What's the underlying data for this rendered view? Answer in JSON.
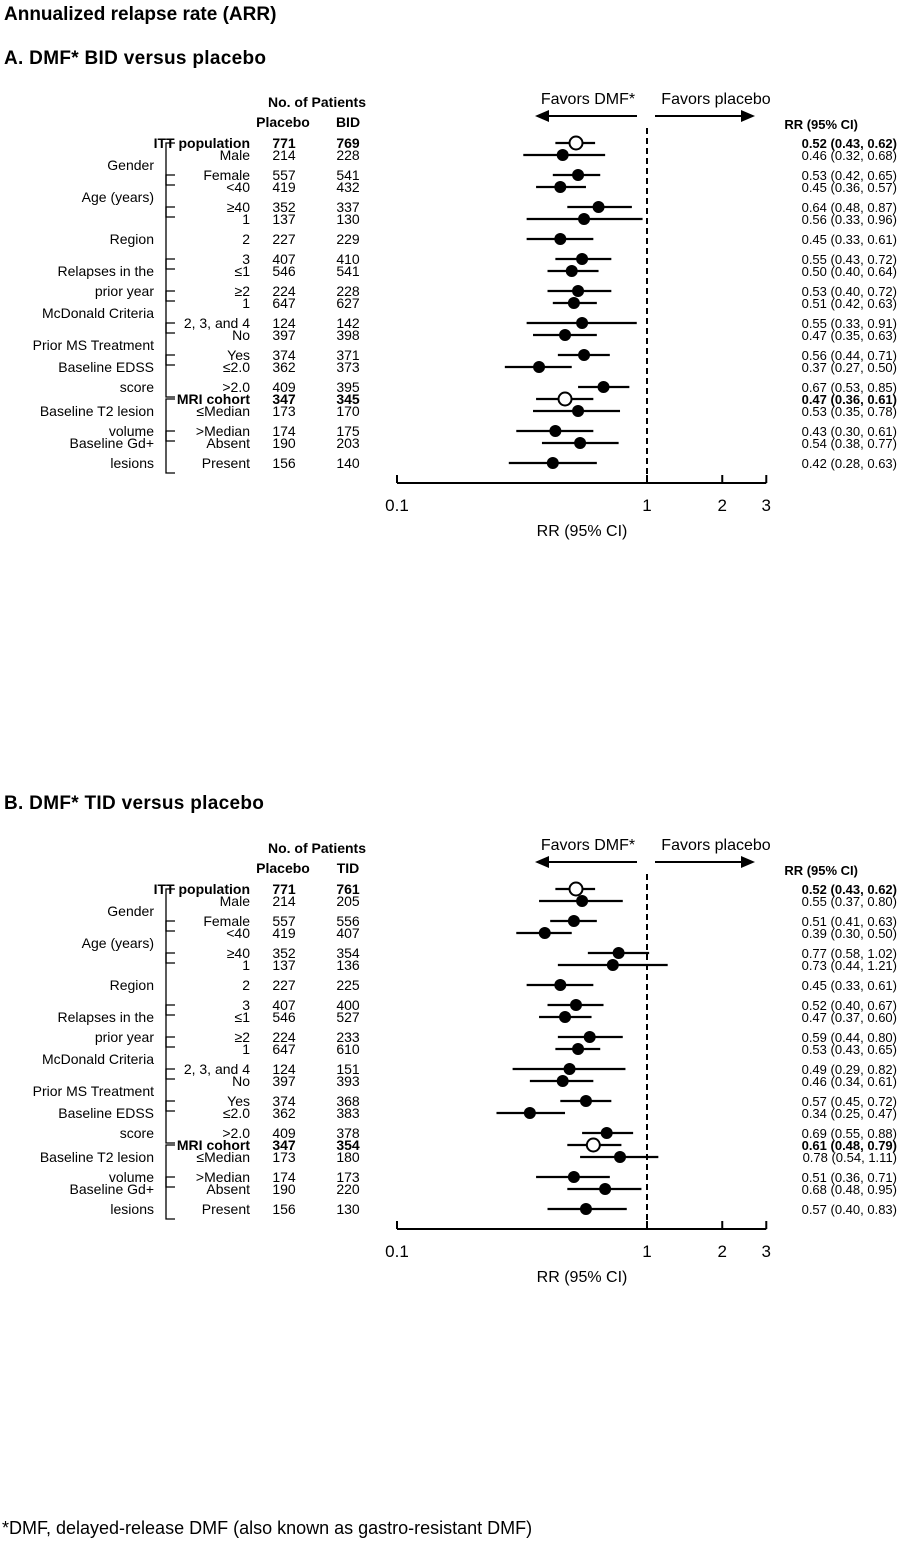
{
  "title": "Annualized relapse rate (ARR)",
  "footnote": "*DMF, delayed-release DMF (also known as gastro-resistant DMF)",
  "chart_data": [
    {
      "type": "forest",
      "panel_title": "A. DMF* BID versus placebo",
      "patients_header": "No. of Patients",
      "col_placebo": "Placebo",
      "col_treat": "BID",
      "rr_header": "RR (95% CI)",
      "favors_left": "Favors DMF*",
      "favors_right": "Favors placebo",
      "xlabel": "RR (95% CI)",
      "xscale": "log",
      "xlim": [
        0.1,
        3
      ],
      "xticks": [
        "0.1",
        "1",
        "2",
        "3"
      ],
      "groups": [
        {
          "label": [],
          "rows": [
            {
              "sub": "ITT population",
              "placebo": "771",
              "treat": "769",
              "rr": 0.52,
              "lo": 0.43,
              "hi": 0.62,
              "ci": "0.52 (0.43, 0.62)",
              "bold": true,
              "open": true
            }
          ]
        },
        {
          "label": [
            "Gender"
          ],
          "rows": [
            {
              "sub": "Male",
              "placebo": "214",
              "treat": "228",
              "rr": 0.46,
              "lo": 0.32,
              "hi": 0.68,
              "ci": "0.46 (0.32, 0.68)"
            },
            {
              "sub": "Female",
              "placebo": "557",
              "treat": "541",
              "rr": 0.53,
              "lo": 0.42,
              "hi": 0.65,
              "ci": "0.53 (0.42, 0.65)"
            }
          ]
        },
        {
          "label": [
            "Age (years)"
          ],
          "rows": [
            {
              "sub": "<40",
              "placebo": "419",
              "treat": "432",
              "rr": 0.45,
              "lo": 0.36,
              "hi": 0.57,
              "ci": "0.45 (0.36, 0.57)"
            },
            {
              "sub": "≥40",
              "placebo": "352",
              "treat": "337",
              "rr": 0.64,
              "lo": 0.48,
              "hi": 0.87,
              "ci": "0.64 (0.48, 0.87)"
            }
          ]
        },
        {
          "label": [
            "Region"
          ],
          "rows": [
            {
              "sub": "1",
              "placebo": "137",
              "treat": "130",
              "rr": 0.56,
              "lo": 0.33,
              "hi": 0.96,
              "ci": "0.56 (0.33, 0.96)"
            },
            {
              "sub": "2",
              "placebo": "227",
              "treat": "229",
              "rr": 0.45,
              "lo": 0.33,
              "hi": 0.61,
              "ci": "0.45 (0.33, 0.61)"
            },
            {
              "sub": "3",
              "placebo": "407",
              "treat": "410",
              "rr": 0.55,
              "lo": 0.43,
              "hi": 0.72,
              "ci": "0.55 (0.43, 0.72)"
            }
          ]
        },
        {
          "label": [
            "Relapses in the",
            "prior year"
          ],
          "rows": [
            {
              "sub": "≤1",
              "placebo": "546",
              "treat": "541",
              "rr": 0.5,
              "lo": 0.4,
              "hi": 0.64,
              "ci": "0.50 (0.40, 0.64)"
            },
            {
              "sub": "≥2",
              "placebo": "224",
              "treat": "228",
              "rr": 0.53,
              "lo": 0.4,
              "hi": 0.72,
              "ci": "0.53 (0.40, 0.72)"
            }
          ]
        },
        {
          "label": [
            "McDonald Criteria"
          ],
          "rows": [
            {
              "sub": "1",
              "placebo": "647",
              "treat": "627",
              "rr": 0.51,
              "lo": 0.42,
              "hi": 0.63,
              "ci": "0.51 (0.42, 0.63)"
            },
            {
              "sub": "2, 3, and 4",
              "placebo": "124",
              "treat": "142",
              "rr": 0.55,
              "lo": 0.33,
              "hi": 0.91,
              "ci": "0.55 (0.33, 0.91)"
            }
          ]
        },
        {
          "label": [
            "Prior MS Treatment"
          ],
          "rows": [
            {
              "sub": "No",
              "placebo": "397",
              "treat": "398",
              "rr": 0.47,
              "lo": 0.35,
              "hi": 0.63,
              "ci": "0.47 (0.35, 0.63)"
            },
            {
              "sub": "Yes",
              "placebo": "374",
              "treat": "371",
              "rr": 0.56,
              "lo": 0.44,
              "hi": 0.71,
              "ci": "0.56 (0.44, 0.71)"
            }
          ]
        },
        {
          "label": [
            "Baseline EDSS",
            "score"
          ],
          "rows": [
            {
              "sub": "≤2.0",
              "placebo": "362",
              "treat": "373",
              "rr": 0.37,
              "lo": 0.27,
              "hi": 0.5,
              "ci": "0.37 (0.27, 0.50)"
            },
            {
              "sub": ">2.0",
              "placebo": "409",
              "treat": "395",
              "rr": 0.67,
              "lo": 0.53,
              "hi": 0.85,
              "ci": "0.67 (0.53, 0.85)"
            }
          ]
        },
        {
          "label": [],
          "rows": [
            {
              "sub": "MRI cohort",
              "placebo": "347",
              "treat": "345",
              "rr": 0.47,
              "lo": 0.36,
              "hi": 0.61,
              "ci": "0.47 (0.36, 0.61)",
              "bold": true,
              "open": true
            }
          ]
        },
        {
          "label": [
            "Baseline T2 lesion",
            "volume"
          ],
          "rows": [
            {
              "sub": "≤Median",
              "placebo": "173",
              "treat": "170",
              "rr": 0.53,
              "lo": 0.35,
              "hi": 0.78,
              "ci": "0.53 (0.35, 0.78)"
            },
            {
              "sub": ">Median",
              "placebo": "174",
              "treat": "175",
              "rr": 0.43,
              "lo": 0.3,
              "hi": 0.61,
              "ci": "0.43 (0.30, 0.61)"
            }
          ]
        },
        {
          "label": [
            "Baseline Gd+",
            "lesions"
          ],
          "rows": [
            {
              "sub": "Absent",
              "placebo": "190",
              "treat": "203",
              "rr": 0.54,
              "lo": 0.38,
              "hi": 0.77,
              "ci": "0.54 (0.38, 0.77)"
            },
            {
              "sub": "Present",
              "placebo": "156",
              "treat": "140",
              "rr": 0.42,
              "lo": 0.28,
              "hi": 0.63,
              "ci": "0.42 (0.28, 0.63)"
            }
          ]
        }
      ]
    },
    {
      "type": "forest",
      "panel_title": "B. DMF* TID versus placebo",
      "patients_header": "No. of Patients",
      "col_placebo": "Placebo",
      "col_treat": "TID",
      "rr_header": "RR (95% CI)",
      "favors_left": "Favors DMF*",
      "favors_right": "Favors placebo",
      "xlabel": "RR (95% CI)",
      "xscale": "log",
      "xlim": [
        0.1,
        3
      ],
      "xticks": [
        "0.1",
        "1",
        "2",
        "3"
      ],
      "groups": [
        {
          "label": [],
          "rows": [
            {
              "sub": "ITT population",
              "placebo": "771",
              "treat": "761",
              "rr": 0.52,
              "lo": 0.43,
              "hi": 0.62,
              "ci": "0.52 (0.43, 0.62)",
              "bold": true,
              "open": true
            }
          ]
        },
        {
          "label": [
            "Gender"
          ],
          "rows": [
            {
              "sub": "Male",
              "placebo": "214",
              "treat": "205",
              "rr": 0.55,
              "lo": 0.37,
              "hi": 0.8,
              "ci": "0.55 (0.37, 0.80)"
            },
            {
              "sub": "Female",
              "placebo": "557",
              "treat": "556",
              "rr": 0.51,
              "lo": 0.41,
              "hi": 0.63,
              "ci": "0.51 (0.41, 0.63)"
            }
          ]
        },
        {
          "label": [
            "Age (years)"
          ],
          "rows": [
            {
              "sub": "<40",
              "placebo": "419",
              "treat": "407",
              "rr": 0.39,
              "lo": 0.3,
              "hi": 0.5,
              "ci": "0.39 (0.30, 0.50)"
            },
            {
              "sub": "≥40",
              "placebo": "352",
              "treat": "354",
              "rr": 0.77,
              "lo": 0.58,
              "hi": 1.02,
              "ci": "0.77 (0.58, 1.02)"
            }
          ]
        },
        {
          "label": [
            "Region"
          ],
          "rows": [
            {
              "sub": "1",
              "placebo": "137",
              "treat": "136",
              "rr": 0.73,
              "lo": 0.44,
              "hi": 1.21,
              "ci": "0.73 (0.44, 1.21)"
            },
            {
              "sub": "2",
              "placebo": "227",
              "treat": "225",
              "rr": 0.45,
              "lo": 0.33,
              "hi": 0.61,
              "ci": "0.45 (0.33, 0.61)"
            },
            {
              "sub": "3",
              "placebo": "407",
              "treat": "400",
              "rr": 0.52,
              "lo": 0.4,
              "hi": 0.67,
              "ci": "0.52 (0.40, 0.67)"
            }
          ]
        },
        {
          "label": [
            "Relapses in the",
            "prior year"
          ],
          "rows": [
            {
              "sub": "≤1",
              "placebo": "546",
              "treat": "527",
              "rr": 0.47,
              "lo": 0.37,
              "hi": 0.6,
              "ci": "0.47 (0.37, 0.60)"
            },
            {
              "sub": "≥2",
              "placebo": "224",
              "treat": "233",
              "rr": 0.59,
              "lo": 0.44,
              "hi": 0.8,
              "ci": "0.59 (0.44, 0.80)"
            }
          ]
        },
        {
          "label": [
            "McDonald Criteria"
          ],
          "rows": [
            {
              "sub": "1",
              "placebo": "647",
              "treat": "610",
              "rr": 0.53,
              "lo": 0.43,
              "hi": 0.65,
              "ci": "0.53 (0.43, 0.65)"
            },
            {
              "sub": "2, 3, and 4",
              "placebo": "124",
              "treat": "151",
              "rr": 0.49,
              "lo": 0.29,
              "hi": 0.82,
              "ci": "0.49 (0.29, 0.82)"
            }
          ]
        },
        {
          "label": [
            "Prior MS Treatment"
          ],
          "rows": [
            {
              "sub": "No",
              "placebo": "397",
              "treat": "393",
              "rr": 0.46,
              "lo": 0.34,
              "hi": 0.61,
              "ci": "0.46 (0.34, 0.61)"
            },
            {
              "sub": "Yes",
              "placebo": "374",
              "treat": "368",
              "rr": 0.57,
              "lo": 0.45,
              "hi": 0.72,
              "ci": "0.57 (0.45, 0.72)"
            }
          ]
        },
        {
          "label": [
            "Baseline EDSS",
            "score"
          ],
          "rows": [
            {
              "sub": "≤2.0",
              "placebo": "362",
              "treat": "383",
              "rr": 0.34,
              "lo": 0.25,
              "hi": 0.47,
              "ci": "0.34 (0.25, 0.47)"
            },
            {
              "sub": ">2.0",
              "placebo": "409",
              "treat": "378",
              "rr": 0.69,
              "lo": 0.55,
              "hi": 0.88,
              "ci": "0.69 (0.55, 0.88)"
            }
          ]
        },
        {
          "label": [],
          "rows": [
            {
              "sub": "MRI cohort",
              "placebo": "347",
              "treat": "354",
              "rr": 0.61,
              "lo": 0.48,
              "hi": 0.79,
              "ci": "0.61 (0.48, 0.79)",
              "bold": true,
              "open": true
            }
          ]
        },
        {
          "label": [
            "Baseline T2 lesion",
            "volume"
          ],
          "rows": [
            {
              "sub": "≤Median",
              "placebo": "173",
              "treat": "180",
              "rr": 0.78,
              "lo": 0.54,
              "hi": 1.11,
              "ci": "0.78 (0.54, 1.11)"
            },
            {
              "sub": ">Median",
              "placebo": "174",
              "treat": "173",
              "rr": 0.51,
              "lo": 0.36,
              "hi": 0.71,
              "ci": "0.51 (0.36, 0.71)"
            }
          ]
        },
        {
          "label": [
            "Baseline Gd+",
            "lesions"
          ],
          "rows": [
            {
              "sub": "Absent",
              "placebo": "190",
              "treat": "220",
              "rr": 0.68,
              "lo": 0.48,
              "hi": 0.95,
              "ci": "0.68 (0.48, 0.95)"
            },
            {
              "sub": "Present",
              "placebo": "156",
              "treat": "130",
              "rr": 0.57,
              "lo": 0.4,
              "hi": 0.83,
              "ci": "0.57 (0.40, 0.83)"
            }
          ]
        }
      ]
    }
  ]
}
